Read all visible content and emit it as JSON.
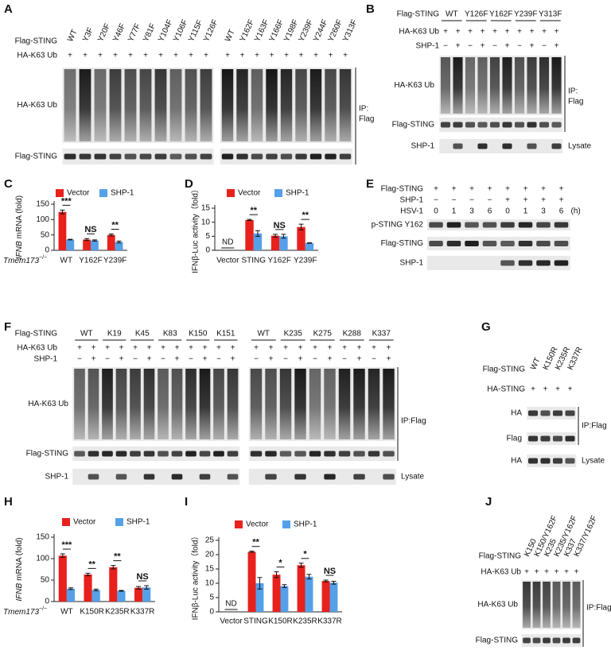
{
  "chart_data": [
    {
      "type": "bar",
      "panel_label": "C",
      "y_label": {
        "italic": "IFNB",
        "text": "mRNA (fold)"
      },
      "x_prefix": {
        "text": "Tmem173",
        "sup": "−/−"
      },
      "categories": [
        "WT",
        "Y162F",
        "Y239F"
      ],
      "series": [
        {
          "name": "Vector",
          "color": "#e8211d",
          "values": [
            125,
            35,
            50
          ],
          "errors": [
            6,
            3,
            3
          ]
        },
        {
          "name": "SHP-1",
          "color": "#55a0e8",
          "values": [
            35,
            32,
            27
          ],
          "errors": [
            1,
            2,
            3
          ]
        }
      ],
      "significance": [
        "***",
        "NS",
        "**"
      ],
      "ylim": [
        0,
        150
      ],
      "yticks": [
        0,
        50,
        100,
        150
      ]
    },
    {
      "type": "bar",
      "panel_label": "D",
      "y_label": "IFNβ-Luc activity（fold）",
      "nd": "ND",
      "categories": [
        "Vector",
        "STING",
        "Y162F",
        "Y239F"
      ],
      "series": [
        {
          "name": "Vector",
          "color": "#e8211d",
          "values": [
            null,
            10.8,
            5.2,
            8.3
          ],
          "errors": [
            null,
            0.2,
            0.5,
            1
          ]
        },
        {
          "name": "SHP-1",
          "color": "#55a0e8",
          "values": [
            null,
            6,
            5,
            2.6
          ],
          "errors": [
            null,
            1,
            0.7,
            0.1
          ]
        }
      ],
      "significance": [
        null,
        "**",
        "NS",
        "**"
      ],
      "ylim": [
        0,
        15
      ],
      "yticks": [
        0,
        5,
        10,
        15
      ]
    },
    {
      "type": "bar",
      "panel_label": "H",
      "y_label": {
        "italic": "IFNB",
        "text": "mRNA (fold)"
      },
      "x_prefix": {
        "text": "Tmem173",
        "sup": "−/−"
      },
      "categories": [
        "WT",
        "K150R",
        "K235R",
        "K337R"
      ],
      "series": [
        {
          "name": "Vector",
          "color": "#e8211d",
          "values": [
            107,
            63,
            80,
            32
          ],
          "errors": [
            4,
            3,
            4,
            3
          ]
        },
        {
          "name": "SHP-1",
          "color": "#55a0e8",
          "values": [
            30,
            27,
            25,
            33
          ],
          "errors": [
            2,
            2,
            1,
            4
          ]
        }
      ],
      "significance": [
        "***",
        "**",
        "**",
        "NS"
      ],
      "ylim": [
        0,
        150
      ],
      "yticks": [
        0,
        50,
        100,
        150
      ]
    },
    {
      "type": "bar",
      "panel_label": "I",
      "y_label": "IFNβ-Luc activity（fold）",
      "nd": "ND",
      "categories": [
        "Vector",
        "STING",
        "K150R",
        "K235R",
        "K337R"
      ],
      "series": [
        {
          "name": "Vector",
          "color": "#e8211d",
          "values": [
            null,
            21,
            13,
            16.3,
            10.8
          ],
          "errors": [
            null,
            0.2,
            1,
            0.7,
            0.3
          ]
        },
        {
          "name": "SHP-1",
          "color": "#55a0e8",
          "values": [
            null,
            10,
            9,
            12.3,
            10.2
          ],
          "errors": [
            null,
            2,
            0.5,
            0.8,
            0.5
          ]
        }
      ],
      "significance": [
        null,
        "**",
        "*",
        "*",
        "NS"
      ],
      "ylim": [
        0,
        25
      ],
      "yticks": [
        0,
        5,
        10,
        15,
        20,
        25
      ]
    }
  ],
  "blots": [
    {
      "panel_label": "A",
      "header": [
        {
          "label": "Flag-STING",
          "lanes": [
            "WT",
            "Y3F",
            "Y20F",
            "Y46F",
            "Y77F",
            "Y81F",
            "Y104F",
            "Y106F",
            "Y115F",
            "Y126F",
            "WT",
            "Y162F",
            "Y163F",
            "Y166F",
            "Y198F",
            "Y239F",
            "Y244F",
            "Y260F",
            "Y313F"
          ]
        },
        {
          "label": "HA-K63 Ub",
          "lanes": [
            "+",
            "+",
            "+",
            "+",
            "+",
            "+",
            "+",
            "+",
            "+",
            "+",
            "+",
            "+",
            "+",
            "+",
            "+",
            "+",
            "+",
            "+",
            "+"
          ]
        }
      ],
      "rows": [
        "HA-K63 Ub",
        "Flag-STING"
      ],
      "side": [
        [
          "IP:",
          "Flag"
        ]
      ]
    },
    {
      "panel_label": "B",
      "header": [
        {
          "label": "Flag-STING",
          "groups": [
            "WT",
            "Y126F",
            "Y162F",
            "Y239F",
            "Y313F"
          ]
        },
        {
          "label": "HA-K63 Ub",
          "lanes": [
            "+",
            "+",
            "+",
            "+",
            "+",
            "+",
            "+",
            "+",
            "+",
            "+"
          ]
        },
        {
          "label": "SHP-1",
          "lanes": [
            "−",
            "+",
            "−",
            "+",
            "−",
            "+",
            "−",
            "+",
            "−",
            "+"
          ]
        }
      ],
      "rows": [
        "HA-K63 Ub",
        "Flag-STING",
        "SHP-1"
      ],
      "side": [
        [
          "IP:",
          "Flag"
        ],
        [
          "Lysate"
        ]
      ]
    },
    {
      "panel_label": "E",
      "header": [
        {
          "label": "Flag-STING",
          "lanes": [
            "+",
            "+",
            "+",
            "+",
            "+",
            "+",
            "+",
            "+"
          ]
        },
        {
          "label": "SHP-1",
          "lanes": [
            "−",
            "−",
            "−",
            "−",
            "+",
            "+",
            "+",
            "+"
          ]
        },
        {
          "label": "HSV-1",
          "lanes": [
            "0",
            "1",
            "3",
            "6",
            "0",
            "1",
            "3",
            "6"
          ],
          "unit": "(h)"
        }
      ],
      "rows": [
        "p-STING Y162",
        "Flag-STING",
        "SHP-1"
      ],
      "side": []
    },
    {
      "panel_label": "F",
      "header": [
        {
          "label": "Flag-STING",
          "groups": [
            "WT",
            "K19",
            "K45",
            "K83",
            "K150",
            "K151",
            "WT",
            "K235",
            "K275",
            "K288",
            "K337"
          ]
        },
        {
          "label": "HA-K63 Ub",
          "lanes": [
            "+",
            "+",
            "+",
            "+",
            "+",
            "+",
            "+",
            "+",
            "+",
            "+",
            "+",
            "+",
            "+",
            "+",
            "+",
            "+",
            "+",
            "+",
            "+",
            "+",
            "+",
            "+"
          ]
        },
        {
          "label": "SHP-1",
          "lanes": [
            "−",
            "+",
            "−",
            "+",
            "−",
            "+",
            "−",
            "+",
            "−",
            "+",
            "−",
            "+",
            "−",
            "+",
            "−",
            "+",
            "−",
            "+",
            "−",
            "+",
            "−",
            "+"
          ]
        }
      ],
      "rows": [
        "HA-K63 Ub",
        "Flag-STING",
        "SHP-1"
      ],
      "side": [
        [
          "IP:Flag"
        ],
        [
          "Lysate"
        ]
      ]
    },
    {
      "panel_label": "G",
      "header": [
        {
          "label": "Flag-STING",
          "lanes": [
            "WT",
            "K150R",
            "K235R",
            "K337R"
          ]
        },
        {
          "label": "HA-STING",
          "lanes": [
            "+",
            "+",
            "+",
            "+"
          ]
        }
      ],
      "rows": [
        "HA",
        "Flag",
        "HA"
      ],
      "side": [
        [
          "IP:Flag"
        ],
        [
          "Lysate"
        ]
      ]
    },
    {
      "panel_label": "J",
      "header": [
        {
          "label": "Flag-STING",
          "lanes": [
            "K150",
            "K150/Y162F",
            "K235",
            "K235/Y162F",
            "K337",
            "K337/Y162F"
          ]
        },
        {
          "label": "HA-K63 Ub",
          "lanes": [
            "+",
            "+",
            "+",
            "+",
            "+",
            "+"
          ]
        }
      ],
      "rows": [
        "HA-K63 Ub",
        "Flag-STING"
      ],
      "side": [
        [
          "IP:Flag"
        ]
      ]
    }
  ]
}
